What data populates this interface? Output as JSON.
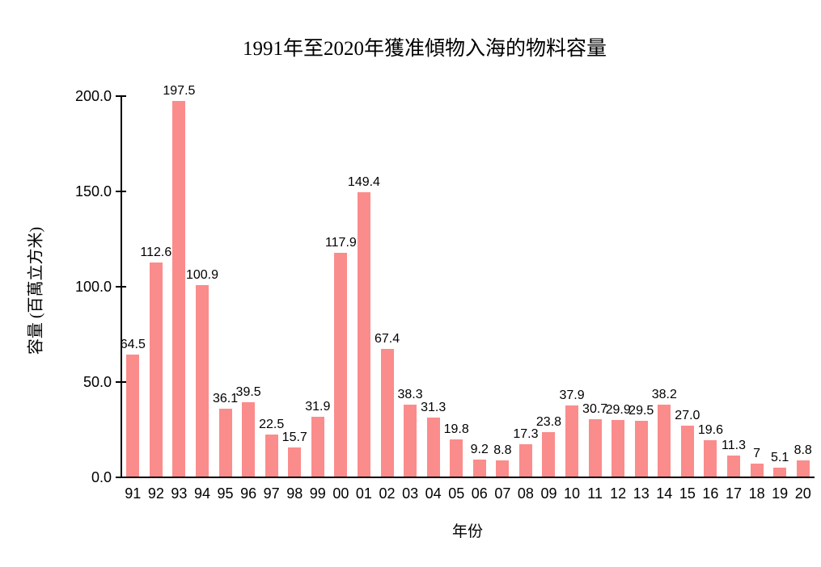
{
  "page": {
    "background_color": "#FFFFFF"
  },
  "chart_data": {
    "type": "bar",
    "title": "1991年至2020年獲准傾物入海的物料容量",
    "xlabel": "年份",
    "ylabel": "容量 (百萬立方米)",
    "categories": [
      "91",
      "92",
      "93",
      "94",
      "95",
      "96",
      "97",
      "98",
      "99",
      "00",
      "01",
      "02",
      "03",
      "04",
      "05",
      "06",
      "07",
      "08",
      "09",
      "10",
      "11",
      "12",
      "13",
      "14",
      "15",
      "16",
      "17",
      "18",
      "19",
      "20"
    ],
    "series": [
      {
        "name": "獲准傾物入海的物料容量",
        "values": [
          64.5,
          112.6,
          197.5,
          100.9,
          36.1,
          39.5,
          22.5,
          15.7,
          31.9,
          117.9,
          149.4,
          67.4,
          38.3,
          31.3,
          19.8,
          9.2,
          8.8,
          17.3,
          23.8,
          37.9,
          30.7,
          29.9,
          29.5,
          38.2,
          27.0,
          19.6,
          11.3,
          7,
          5.1,
          8.8
        ],
        "value_labels": [
          "64.5",
          "112.6",
          "197.5",
          "100.9",
          "36.1",
          "39.5",
          "22.5",
          "15.7",
          "31.9",
          "117.9",
          "149.4",
          "67.4",
          "38.3",
          "31.3",
          "19.8",
          "9.2",
          "8.8",
          "17.3",
          "23.8",
          "37.9",
          "30.7",
          "29.9",
          "29.5",
          "38.2",
          "27.0",
          "19.6",
          "11.3",
          "7",
          "5.1",
          "8.8"
        ]
      }
    ],
    "ylim": [
      0,
      200
    ],
    "yticks": [
      {
        "value": 0,
        "label": "0.0"
      },
      {
        "value": 50,
        "label": "50.0"
      },
      {
        "value": 100,
        "label": "100.0"
      },
      {
        "value": 150,
        "label": "150.0"
      },
      {
        "value": 200,
        "label": "200.0"
      }
    ],
    "grid": false,
    "legend": null,
    "colors": {
      "bar_fill": "#FB8C8C",
      "axis": "#000000",
      "text": "#000000"
    }
  }
}
